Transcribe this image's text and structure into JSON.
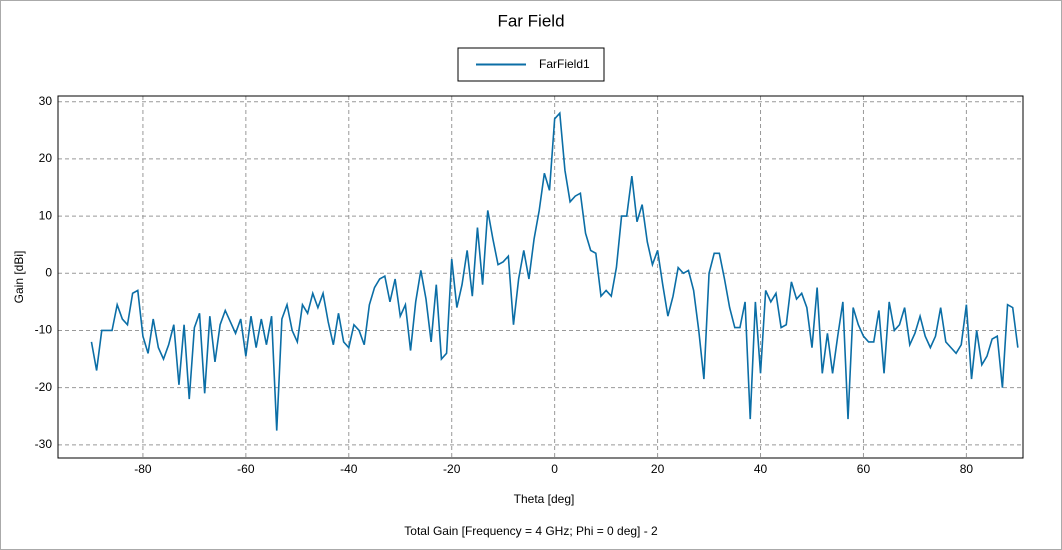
{
  "chart_data": {
    "type": "line",
    "title": "Far Field",
    "xlabel": "Theta [deg]",
    "ylabel": "Gain [dBi]",
    "footnote": "Total Gain [Frequency = 4 GHz; Phi = 0 deg] - 2",
    "xlim": [
      -96.5,
      91
    ],
    "ylim": [
      -32.3,
      31
    ],
    "xticks": [
      -80,
      -60,
      -40,
      -20,
      0,
      20,
      40,
      60,
      80
    ],
    "yticks": [
      -30,
      -20,
      -10,
      0,
      10,
      20,
      30
    ],
    "grid": true,
    "legend": "top",
    "x": [
      -90,
      -89,
      -88,
      -87,
      -86,
      -85,
      -84,
      -83,
      -82,
      -81,
      -80,
      -79,
      -78,
      -77,
      -76,
      -75,
      -74,
      -73,
      -72,
      -71,
      -70,
      -69,
      -68,
      -67,
      -66,
      -65,
      -64,
      -63,
      -62,
      -61,
      -60,
      -59,
      -58,
      -57,
      -56,
      -55,
      -54,
      -53,
      -52,
      -51,
      -50,
      -49,
      -48,
      -47,
      -46,
      -45,
      -44,
      -43,
      -42,
      -41,
      -40,
      -39,
      -38,
      -37,
      -36,
      -35,
      -34,
      -33,
      -32,
      -31,
      -30,
      -29,
      -28,
      -27,
      -26,
      -25,
      -24,
      -23,
      -22,
      -21,
      -20,
      -19,
      -18,
      -17,
      -16,
      -15,
      -14,
      -13,
      -12,
      -11,
      -10,
      -9,
      -8,
      -7,
      -6,
      -5,
      -4,
      -3,
      -2,
      -1,
      0,
      1,
      2,
      3,
      4,
      5,
      6,
      7,
      8,
      9,
      10,
      11,
      12,
      13,
      14,
      15,
      16,
      17,
      18,
      19,
      20,
      21,
      22,
      23,
      24,
      25,
      26,
      27,
      28,
      29,
      30,
      31,
      32,
      33,
      34,
      35,
      36,
      37,
      38,
      39,
      40,
      41,
      42,
      43,
      44,
      45,
      46,
      47,
      48,
      49,
      50,
      51,
      52,
      53,
      54,
      55,
      56,
      57,
      58,
      59,
      60,
      61,
      62,
      63,
      64,
      65,
      66,
      67,
      68,
      69,
      70,
      71,
      72,
      73,
      74,
      75,
      76,
      77,
      78,
      79,
      80,
      81,
      82,
      83,
      84,
      85,
      86,
      87,
      88,
      89,
      90
    ],
    "series": [
      {
        "name": "FarField1",
        "color": "#0b6ea6",
        "values": [
          -12,
          -17,
          -10,
          -10,
          -10,
          -5.5,
          -8,
          -9,
          -3.5,
          -3,
          -11,
          -14,
          -8,
          -13,
          -15,
          -12.5,
          -9,
          -19.5,
          -9,
          -22,
          -9.5,
          -7,
          -21,
          -7.5,
          -15.5,
          -9,
          -6.5,
          -8.5,
          -10.5,
          -8,
          -14.5,
          -7.5,
          -13,
          -8,
          -12.5,
          -7.5,
          -27.5,
          -8,
          -5.5,
          -10,
          -12,
          -5.5,
          -7,
          -3.5,
          -6,
          -3.5,
          -8.5,
          -12.5,
          -7,
          -12,
          -13,
          -9,
          -10,
          -12.5,
          -5.5,
          -2.5,
          -1,
          -0.5,
          -5,
          -1,
          -7.5,
          -5.5,
          -13.5,
          -5,
          0.5,
          -4.5,
          -12,
          -2,
          -15,
          -14,
          2.5,
          -6,
          -2,
          4,
          -4,
          8,
          -2,
          11,
          6,
          1.5,
          2,
          3,
          -9,
          -1,
          4,
          -1,
          6,
          11,
          17.5,
          14.5,
          27,
          28,
          18,
          12.5,
          13.5,
          14,
          7,
          4,
          3.5,
          -4,
          -3,
          -4,
          1,
          10,
          10,
          17,
          9,
          12,
          5.5,
          1.5,
          4,
          -2,
          -7.5,
          -4,
          1,
          0,
          0.5,
          -3,
          -10,
          -18.5,
          0,
          3.5,
          3.5,
          -1,
          -6,
          -9.5,
          -9.5,
          -5,
          -25.5,
          -5,
          -17.5,
          -3,
          -5,
          -3.5,
          -9.5,
          -9,
          -1.5,
          -4.5,
          -3.5,
          -6,
          -13,
          -2.5,
          -17.5,
          -10.5,
          -17.5,
          -11,
          -5,
          -25.5,
          -6,
          -9,
          -11,
          -12,
          -12,
          -6.5,
          -17.5,
          -5,
          -10,
          -9,
          -6,
          -12.5,
          -10.5,
          -7.5,
          -11,
          -13,
          -11,
          -6,
          -12,
          -13,
          -14,
          -12.5,
          -5.5,
          -18.5,
          -10,
          -16,
          -14.5,
          -11.5,
          -11,
          -20,
          -5.5,
          -6,
          -13
        ]
      }
    ]
  }
}
